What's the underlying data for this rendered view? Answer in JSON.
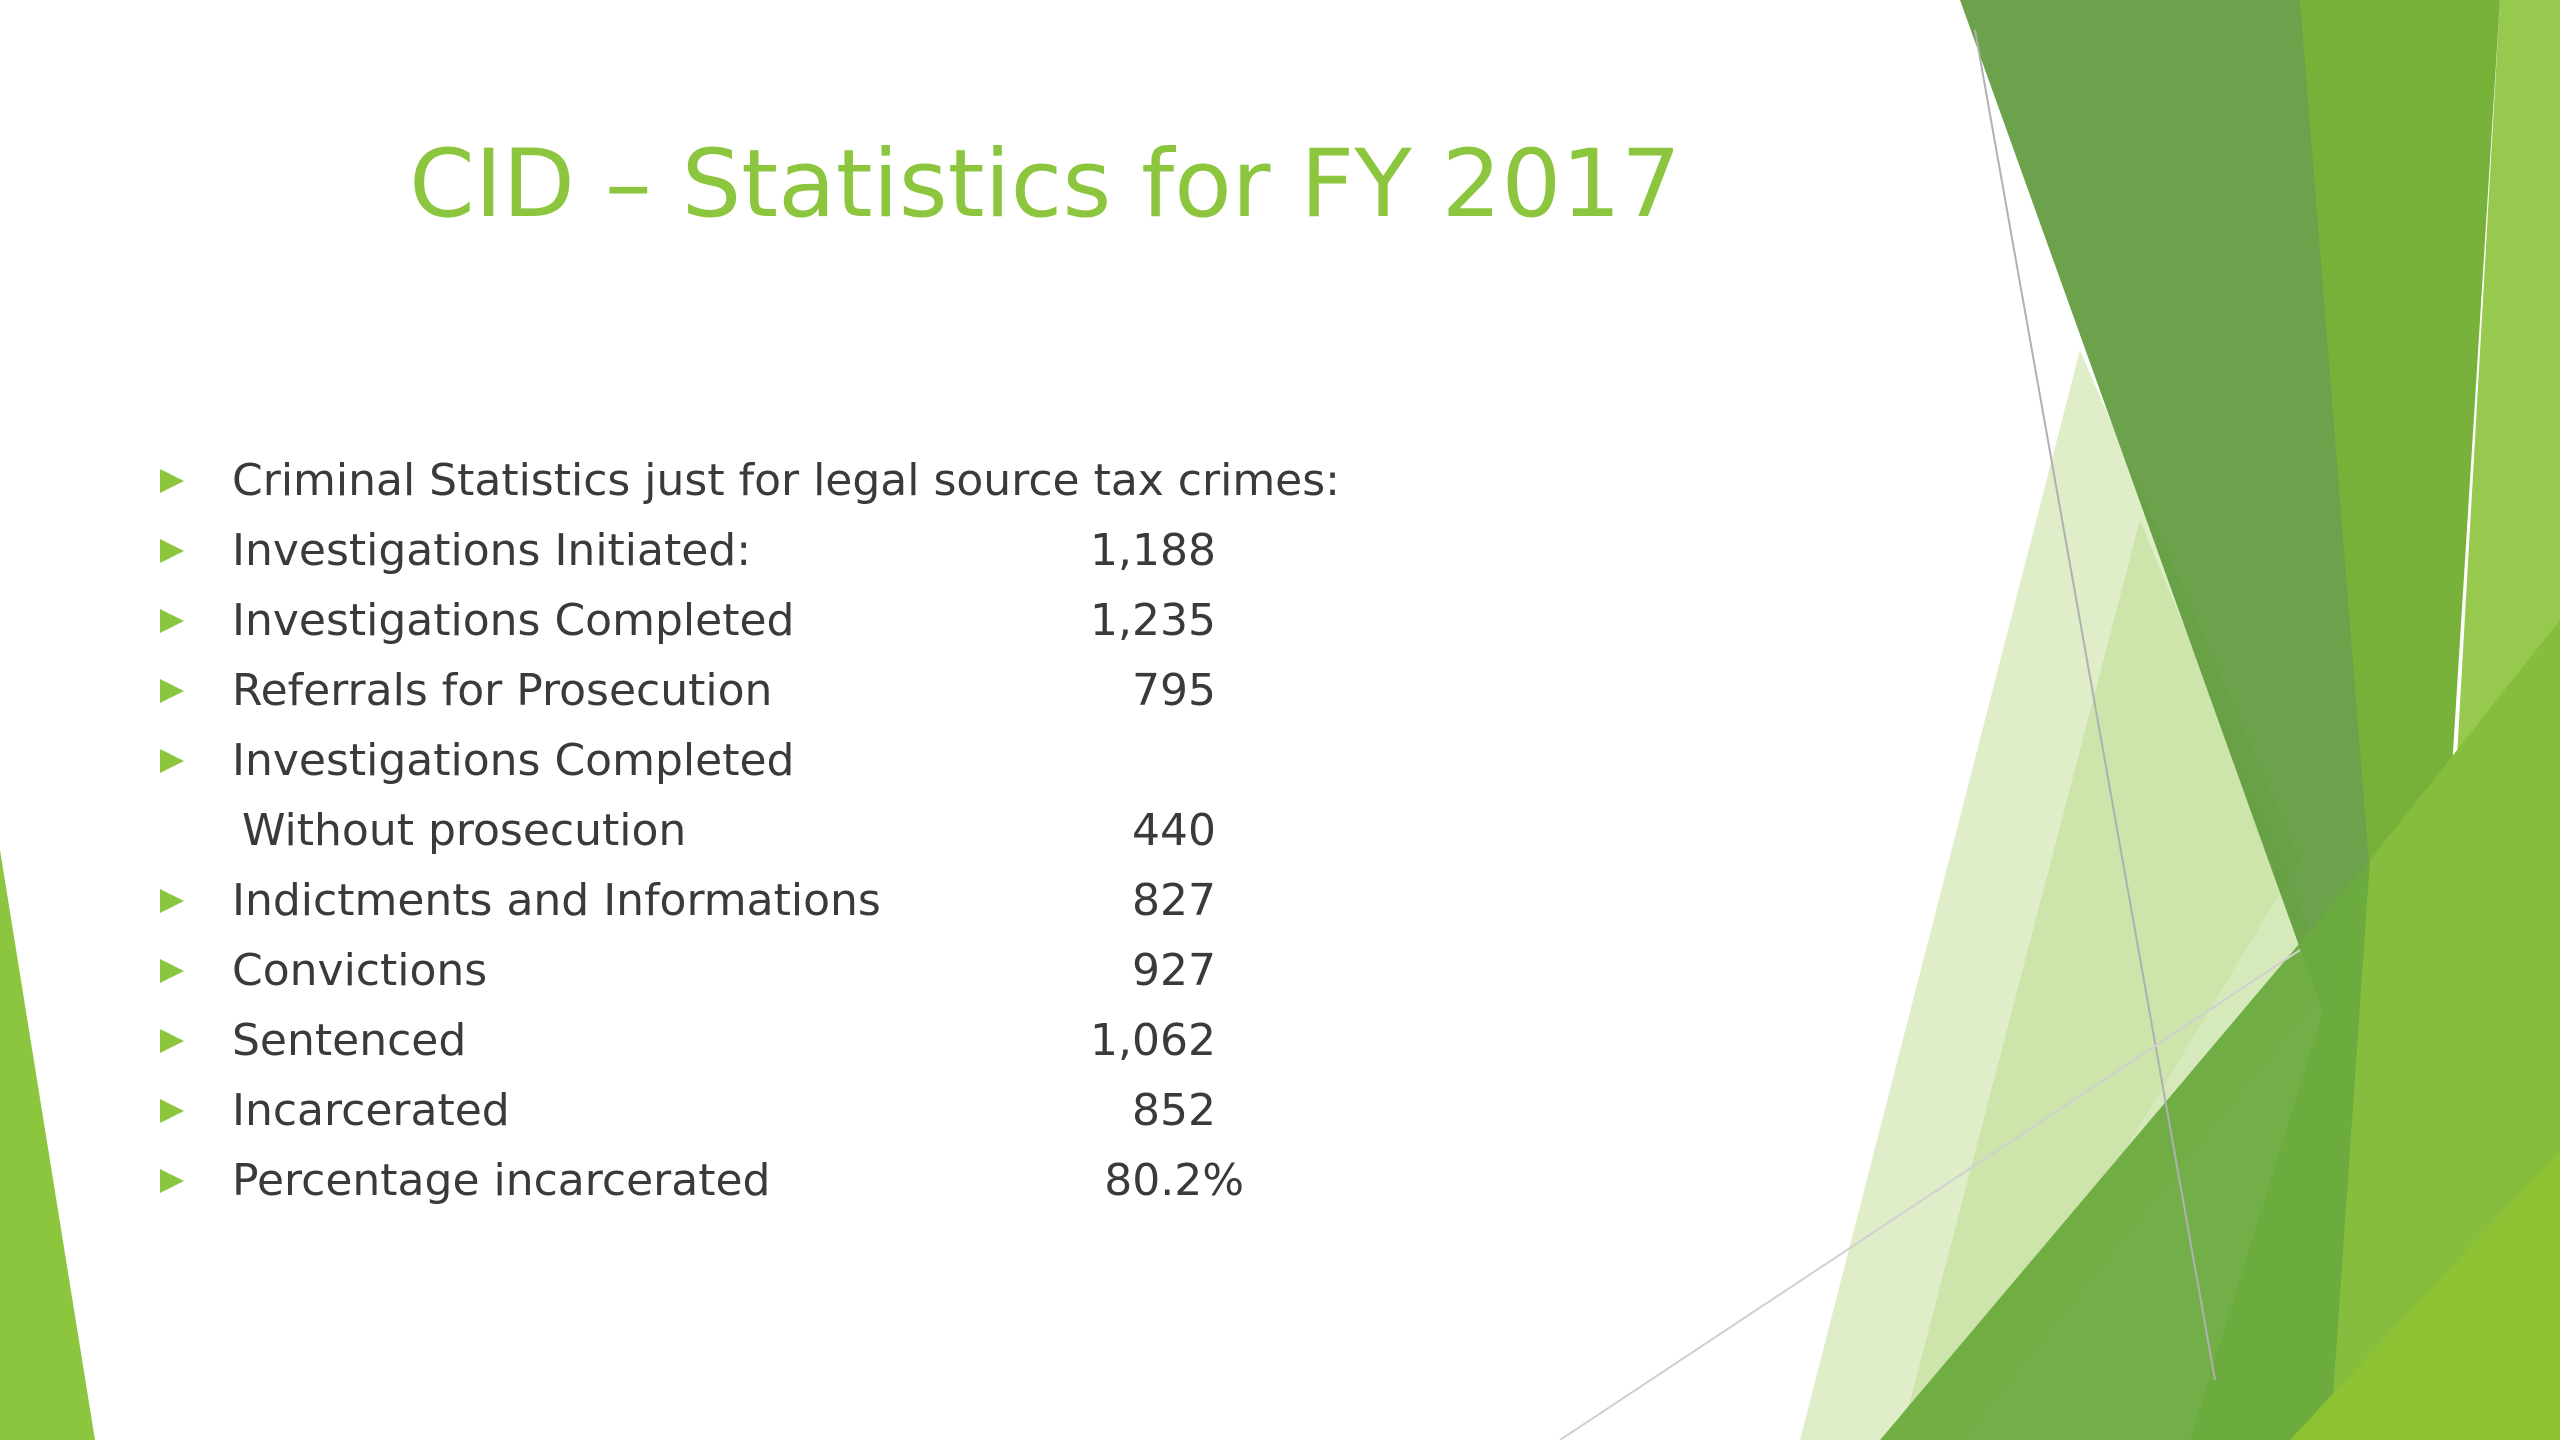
{
  "slide": {
    "title": "CID – Statistics for FY 2017",
    "stats": [
      {
        "label": "Criminal Statistics just for legal source tax crimes:",
        "value": "",
        "bullet": true
      },
      {
        "label": "Investigations Initiated:",
        "value": "1,188",
        "bullet": true
      },
      {
        "label": "Investigations Completed",
        "value": "1,235",
        "bullet": true
      },
      {
        "label": "Referrals for Prosecution",
        "value": "795",
        "bullet": true
      },
      {
        "label": "Investigations Completed",
        "value": "",
        "bullet": true
      },
      {
        "label": "Without prosecution",
        "value": "440",
        "bullet": false
      },
      {
        "label": "Indictments and Informations",
        "value": "827",
        "bullet": true
      },
      {
        "label": "Convictions",
        "value": "927",
        "bullet": true
      },
      {
        "label": "Sentenced",
        "value": "1,062",
        "bullet": true
      },
      {
        "label": "Incarcerated",
        "value": "852",
        "bullet": true
      },
      {
        "label": "Percentage incarcerated",
        "value": "80.2%",
        "bullet": true
      }
    ]
  },
  "colors": {
    "accent": "#8cc63f",
    "text": "#3a3a3a",
    "dark_green": "#5b8f3a",
    "mid_green": "#7ab648",
    "light_green": "#d4e8b4"
  }
}
